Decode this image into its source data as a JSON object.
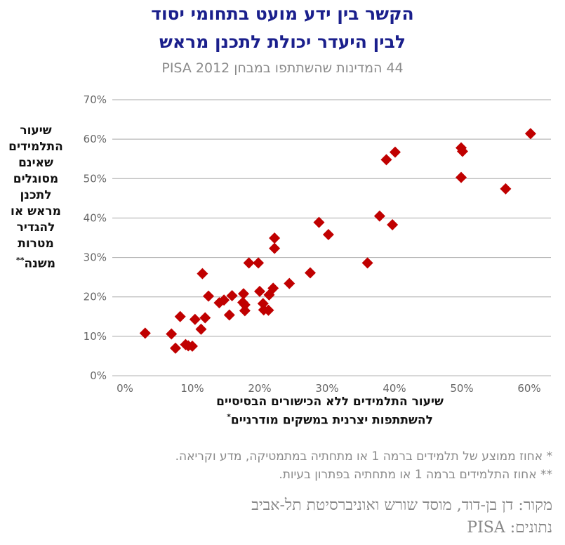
{
  "header": {
    "title_line1": "הקשר בין ידע מועט בתחומי יסוד",
    "title_line2": "לבין היעדר יכולת לתכנן מראש",
    "subtitle": "44 המדינות שהשתתפו במבחן PISA 2012"
  },
  "axes": {
    "ylabel": "שיעור התלמידים שאינם מסוגלים לתכנן מראש או להגדיר מטרות משנה",
    "ylabel_mark": "**",
    "xlabel_line1": "שיעור התלמידים ללא הכישורים הבסיסיים",
    "xlabel_line2": "להשתתפות יצרנית במשקים מודרניים",
    "xlabel_mark": "*"
  },
  "footer": {
    "note1": "* אחוז ממוצע של תלמידים ברמה 1 או מתחתיה במתמטיקה, מדע וקריאה.",
    "note2": "** אחוז התלמידים ברמה 1 או מתחתיה בפתרון בעיות.",
    "source": "מקור: דן בן-דוד, מוסד שורש ואוניברסיטת תל-אביב",
    "data_source": "נתונים: PISA"
  },
  "chart_data": {
    "type": "scatter",
    "xlim": [
      0,
      0.62
    ],
    "ylim": [
      0,
      0.7
    ],
    "x_ticks": [
      "0%",
      "10%",
      "20%",
      "30%",
      "40%",
      "50%",
      "60%"
    ],
    "y_ticks": [
      "0%",
      "10%",
      "20%",
      "30%",
      "40%",
      "50%",
      "60%",
      "70%"
    ],
    "grid": "horizontal",
    "marker": "diamond",
    "color": "#c00000",
    "points": [
      [
        0.03,
        0.108
      ],
      [
        0.069,
        0.106
      ],
      [
        0.075,
        0.07
      ],
      [
        0.082,
        0.15
      ],
      [
        0.09,
        0.079
      ],
      [
        0.094,
        0.076
      ],
      [
        0.1,
        0.075
      ],
      [
        0.104,
        0.143
      ],
      [
        0.113,
        0.118
      ],
      [
        0.115,
        0.259
      ],
      [
        0.119,
        0.147
      ],
      [
        0.124,
        0.202
      ],
      [
        0.14,
        0.185
      ],
      [
        0.147,
        0.192
      ],
      [
        0.155,
        0.154
      ],
      [
        0.159,
        0.203
      ],
      [
        0.175,
        0.186
      ],
      [
        0.176,
        0.208
      ],
      [
        0.178,
        0.18
      ],
      [
        0.178,
        0.165
      ],
      [
        0.184,
        0.286
      ],
      [
        0.198,
        0.286
      ],
      [
        0.2,
        0.214
      ],
      [
        0.205,
        0.183
      ],
      [
        0.206,
        0.167
      ],
      [
        0.213,
        0.166
      ],
      [
        0.214,
        0.205
      ],
      [
        0.22,
        0.222
      ],
      [
        0.222,
        0.349
      ],
      [
        0.222,
        0.323
      ],
      [
        0.244,
        0.234
      ],
      [
        0.275,
        0.261
      ],
      [
        0.288,
        0.389
      ],
      [
        0.302,
        0.358
      ],
      [
        0.36,
        0.286
      ],
      [
        0.378,
        0.405
      ],
      [
        0.388,
        0.548
      ],
      [
        0.397,
        0.383
      ],
      [
        0.401,
        0.567
      ],
      [
        0.499,
        0.578
      ],
      [
        0.499,
        0.503
      ],
      [
        0.501,
        0.569
      ],
      [
        0.565,
        0.474
      ],
      [
        0.602,
        0.614
      ]
    ]
  }
}
